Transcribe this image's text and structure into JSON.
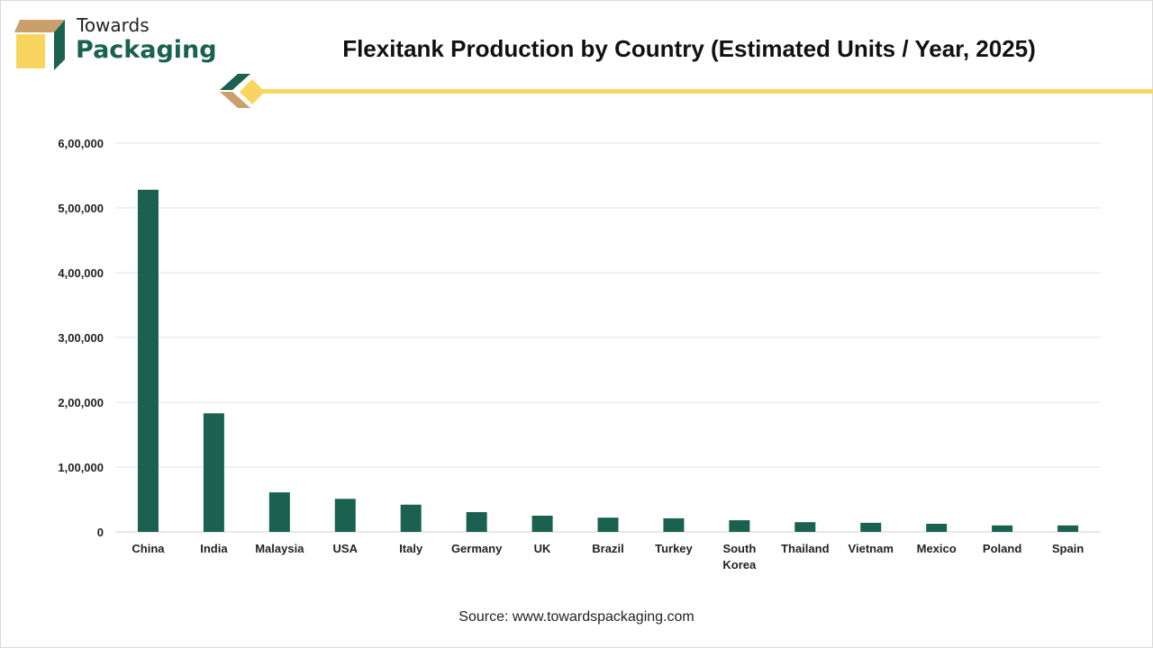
{
  "brand": {
    "line1": "Towards",
    "line2": "Packaging"
  },
  "title": "Flexitank Production by Country (Estimated Units / Year, 2025)",
  "source": "Source: www.towardspackaging.com",
  "colors": {
    "bar": "#1a6150",
    "accent_yellow": "#f5d862",
    "accent_tan": "#c9a06b"
  },
  "chart_data": {
    "type": "bar",
    "title": "Flexitank Production by Country (Estimated Units / Year, 2025)",
    "xlabel": "",
    "ylabel": "",
    "ylim": [
      0,
      600000
    ],
    "yticks": [
      0,
      100000,
      200000,
      300000,
      400000,
      500000,
      600000
    ],
    "ytick_labels": [
      "0",
      "1,00,000",
      "2,00,000",
      "3,00,000",
      "4,00,000",
      "5,00,000",
      "6,00,000"
    ],
    "grid": true,
    "categories": [
      "China",
      "India",
      "Malaysia",
      "USA",
      "Italy",
      "Germany",
      "UK",
      "Brazil",
      "Turkey",
      "South Korea",
      "Thailand",
      "Vietnam",
      "Mexico",
      "Poland",
      "Spain"
    ],
    "values": [
      528000,
      183000,
      61000,
      51000,
      42000,
      30500,
      25000,
      22000,
      21000,
      18000,
      15000,
      14000,
      12500,
      10000,
      10000
    ]
  }
}
